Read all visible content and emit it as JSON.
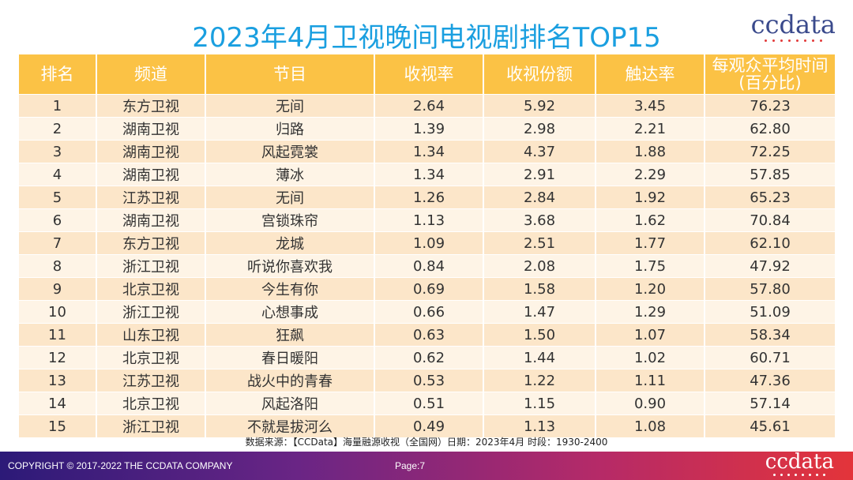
{
  "title": "2023年4月卫视晚间电视剧排名TOP15",
  "logo": "ccdata",
  "table": {
    "headers": [
      "排名",
      "频道",
      "节目",
      "收视率",
      "收视份额",
      "触达率",
      "每观众平均时间\n(百分比)"
    ],
    "rows": [
      [
        "1",
        "东方卫视",
        "无间",
        "2.64",
        "5.92",
        "3.45",
        "76.23"
      ],
      [
        "2",
        "湖南卫视",
        "归路",
        "1.39",
        "2.98",
        "2.21",
        "62.80"
      ],
      [
        "3",
        "湖南卫视",
        "风起霓裳",
        "1.34",
        "4.37",
        "1.88",
        "72.25"
      ],
      [
        "4",
        "湖南卫视",
        "薄冰",
        "1.34",
        "2.91",
        "2.29",
        "57.85"
      ],
      [
        "5",
        "江苏卫视",
        "无间",
        "1.26",
        "2.84",
        "1.92",
        "65.23"
      ],
      [
        "6",
        "湖南卫视",
        "宫锁珠帘",
        "1.13",
        "3.68",
        "1.62",
        "70.84"
      ],
      [
        "7",
        "东方卫视",
        "龙城",
        "1.09",
        "2.51",
        "1.77",
        "62.10"
      ],
      [
        "8",
        "浙江卫视",
        "听说你喜欢我",
        "0.84",
        "2.08",
        "1.75",
        "47.92"
      ],
      [
        "9",
        "北京卫视",
        "今生有你",
        "0.69",
        "1.58",
        "1.20",
        "57.80"
      ],
      [
        "10",
        "浙江卫视",
        "心想事成",
        "0.66",
        "1.47",
        "1.29",
        "51.09"
      ],
      [
        "11",
        "山东卫视",
        "狂飙",
        "0.63",
        "1.50",
        "1.07",
        "58.34"
      ],
      [
        "12",
        "北京卫视",
        "春日暖阳",
        "0.62",
        "1.44",
        "1.02",
        "60.71"
      ],
      [
        "13",
        "江苏卫视",
        "战火中的青春",
        "0.53",
        "1.22",
        "1.11",
        "47.36"
      ],
      [
        "14",
        "北京卫视",
        "风起洛阳",
        "0.51",
        "1.15",
        "0.90",
        "57.14"
      ],
      [
        "15",
        "浙江卫视",
        "不就是拔河么",
        "0.49",
        "1.13",
        "1.08",
        "45.61"
      ]
    ]
  },
  "source": "数据来源：【CCData】海量融源收视（全国网）日期：2023年4月 时段：1930-2400",
  "footer": {
    "copyright": "COPYRIGHT © 2017-2022 THE CCDATA COMPANY",
    "page": "Page:7",
    "logo": "ccdata"
  },
  "colors": {
    "title": "#1A9FE0",
    "header_bg": "#FBC245",
    "row_odd": "#FCE6C9",
    "row_even": "#FEF4E6"
  }
}
